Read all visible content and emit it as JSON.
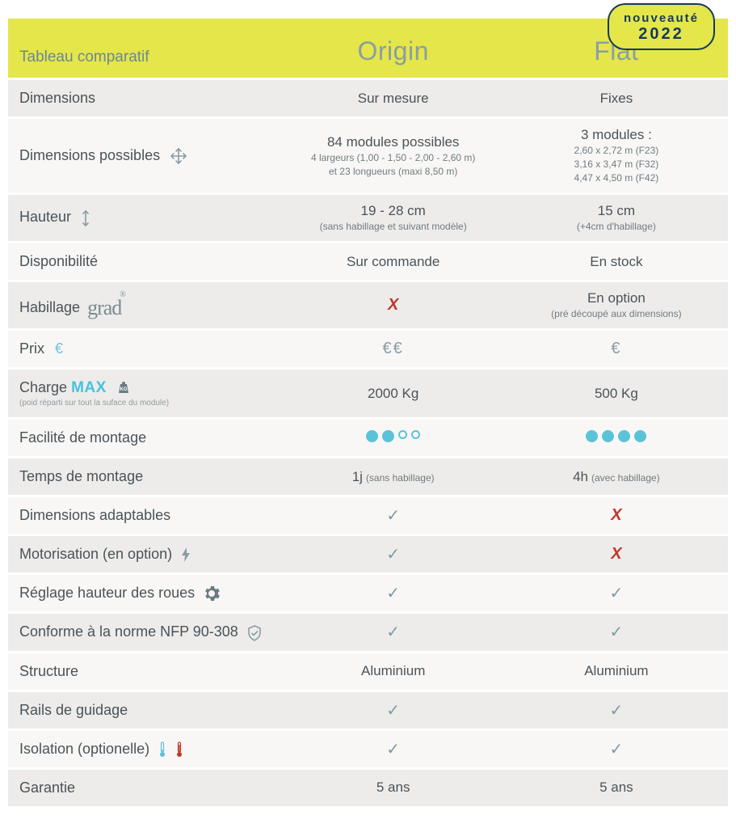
{
  "badge": {
    "line1": "nouveauté",
    "line2": "2022"
  },
  "header": {
    "title": "Tableau comparatif",
    "col1": "Origin",
    "col2": "Flat"
  },
  "colors": {
    "accent_yellow": "#e4e649",
    "header_text": "#8a9da5",
    "body_text": "#4a5358",
    "row_odd": "#edeceb",
    "row_even": "#f8f7f6",
    "dot_fill": "#5bc3d8",
    "check": "#7f9aa3",
    "x": "#c0392b",
    "euro": "#8a9da5",
    "max": "#44c2de",
    "badge_border": "#153a5b"
  },
  "rows": {
    "dimensions": {
      "label": "Dimensions",
      "origin": "Sur mesure",
      "flat": "Fixes"
    },
    "dim_possibles": {
      "label": "Dimensions possibles",
      "origin_main": "84 modules possibles",
      "origin_sub1": "4 largeurs (1,00 - 1,50 - 2,00 - 2,60 m)",
      "origin_sub2": "et 23 longueurs (maxi 8,50 m)",
      "flat_main": "3 modules :",
      "flat_sub1": "2,60 x 2,72 m (F23)",
      "flat_sub2": "3,16 x 3,47 m (F32)",
      "flat_sub3": "4,47 x 4,50 m (F42)"
    },
    "hauteur": {
      "label": "Hauteur",
      "origin_main": "19 - 28 cm",
      "origin_sub": "(sans habillage et suivant modèle)",
      "flat_main": "15 cm",
      "flat_sub": "(+4cm d'habillage)"
    },
    "dispo": {
      "label": "Disponibilité",
      "origin": "Sur commande",
      "flat": "En stock"
    },
    "habillage": {
      "label": "Habillage",
      "brand": "grad",
      "origin": "x",
      "flat_main": "En option",
      "flat_sub": "(pré découpé aux dimensions)"
    },
    "prix": {
      "label": "Prix",
      "origin": "€€",
      "flat": "€"
    },
    "charge": {
      "label": "Charge",
      "max": "MAX",
      "note": "(poid réparti sur tout la suface du module)",
      "origin": "2000 Kg",
      "flat": "500 Kg"
    },
    "facilite": {
      "label": "Facilité de montage",
      "origin_filled": 2,
      "origin_total": 4,
      "flat_filled": 4,
      "flat_total": 4
    },
    "temps": {
      "label": "Temps de montage",
      "origin_main": "1j",
      "origin_sub": "(sans habillage)",
      "flat_main": "4h",
      "flat_sub": "(avec habillage)"
    },
    "adaptables": {
      "label": "Dimensions adaptables",
      "origin": "check",
      "flat": "x"
    },
    "motorisation": {
      "label": "Motorisation (en option)",
      "origin": "check",
      "flat": "x"
    },
    "reglage": {
      "label": "Réglage hauteur des roues",
      "origin": "check",
      "flat": "check"
    },
    "norme": {
      "label": "Conforme à la norme NFP 90-308",
      "origin": "check",
      "flat": "check"
    },
    "structure": {
      "label": "Structure",
      "origin": "Aluminium",
      "flat": "Aluminium"
    },
    "rails": {
      "label": "Rails de guidage",
      "origin": "check",
      "flat": "check"
    },
    "isolation": {
      "label": "Isolation (optionelle)",
      "origin": "check",
      "flat": "check"
    },
    "garantie": {
      "label": "Garantie",
      "origin": "5 ans",
      "flat": "5 ans"
    }
  }
}
